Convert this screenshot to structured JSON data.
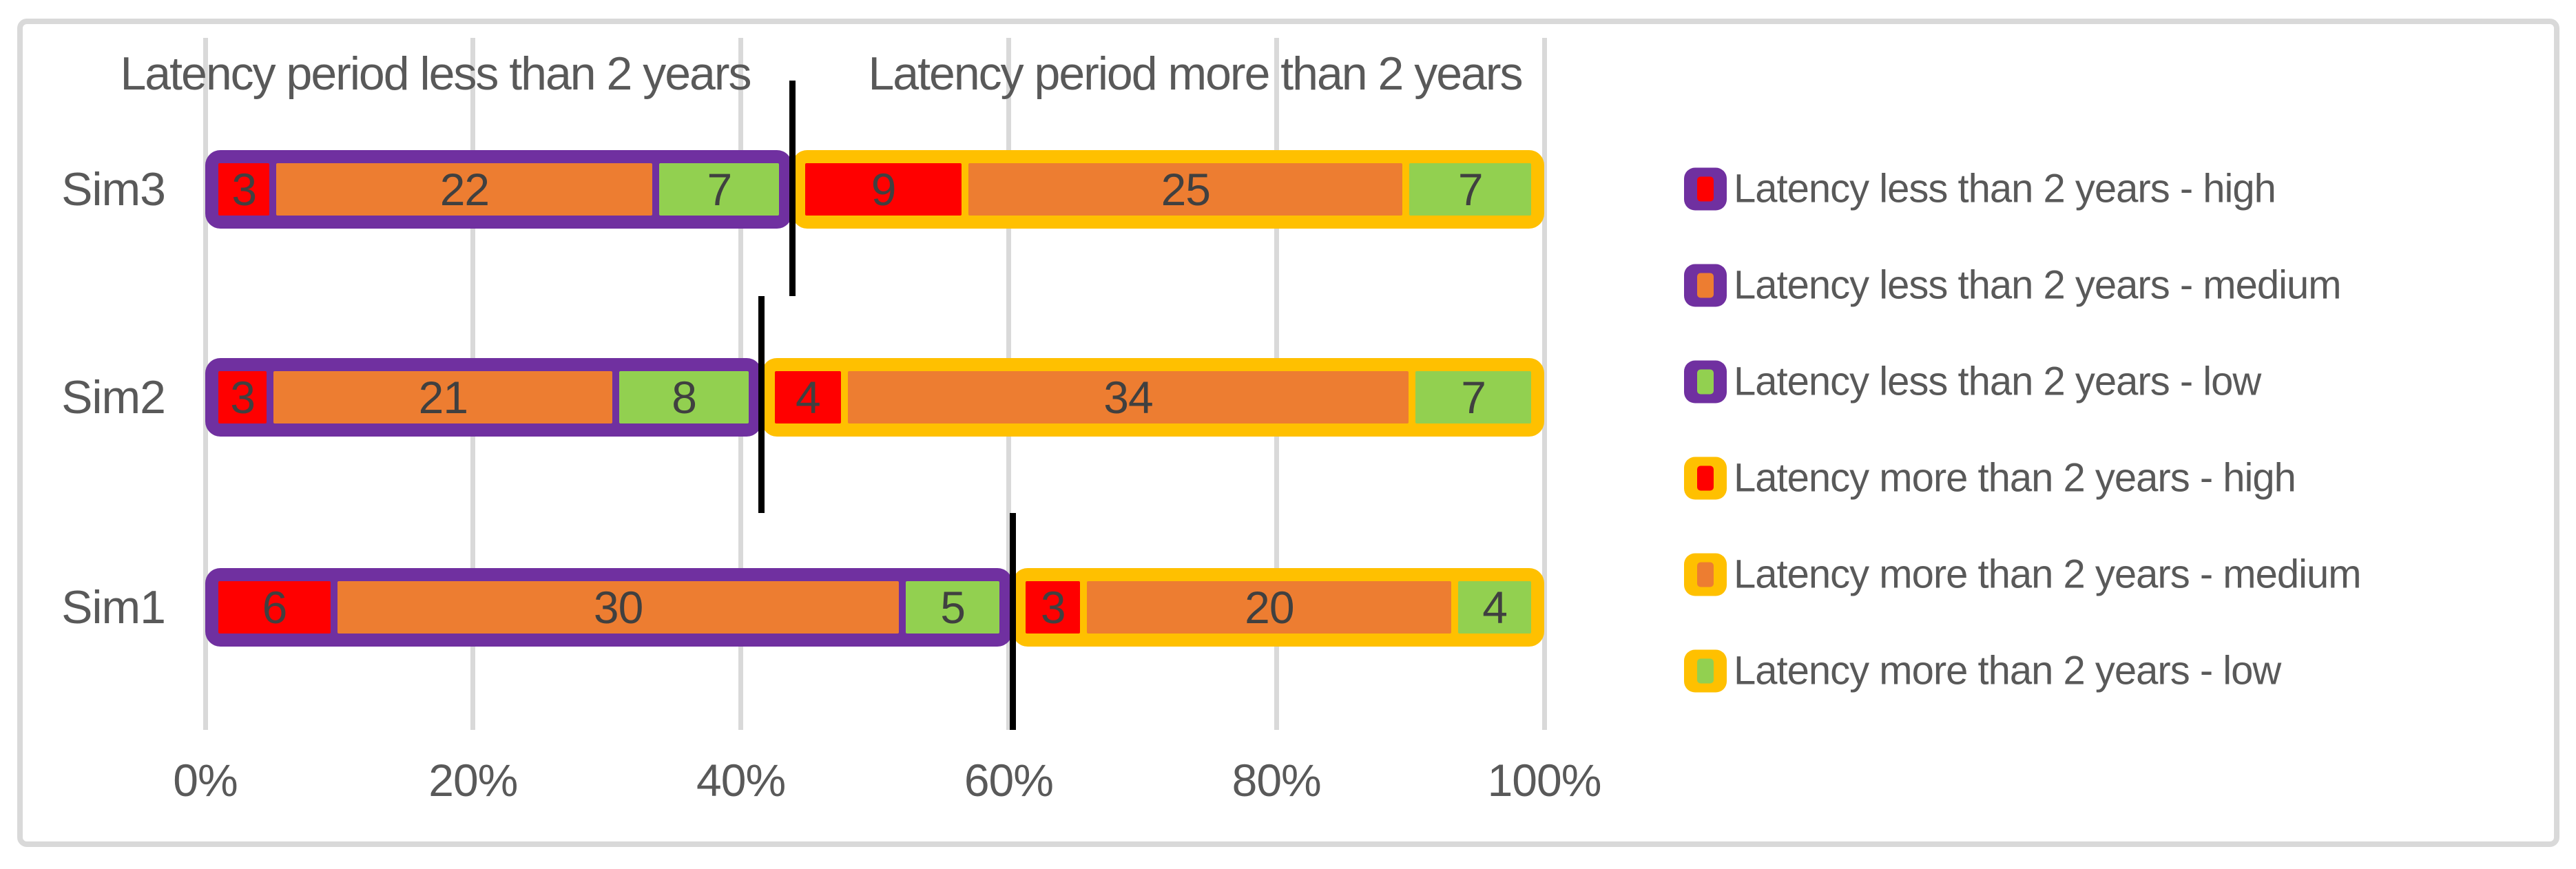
{
  "chart_data": {
    "type": "bar",
    "orientation": "horizontal",
    "stacked": "100%",
    "categories": [
      "Sim3",
      "Sim2",
      "Sim1"
    ],
    "groups": [
      {
        "name": "Latency period less than 2 years",
        "border_color": "#7030A0",
        "series": [
          {
            "name": "Latency less than 2 years - high",
            "color": "#FF0000",
            "values": [
              3,
              3,
              6
            ]
          },
          {
            "name": "Latency less than 2 years - medium",
            "color": "#ED7D31",
            "values": [
              22,
              21,
              30
            ]
          },
          {
            "name": "Latency less than 2 years - low",
            "color": "#92D050",
            "values": [
              7,
              8,
              5
            ]
          }
        ]
      },
      {
        "name": "Latency period more than 2 years",
        "border_color": "#FFC000",
        "series": [
          {
            "name": "Latency more than 2 years - high",
            "color": "#FF0000",
            "values": [
              9,
              4,
              3
            ]
          },
          {
            "name": "Latency more than 2 years - medium",
            "color": "#ED7D31",
            "values": [
              25,
              34,
              20
            ]
          },
          {
            "name": "Latency more than 2 years - low",
            "color": "#92D050",
            "values": [
              7,
              7,
              4
            ]
          }
        ]
      }
    ],
    "x_ticks": [
      "0%",
      "20%",
      "40%",
      "60%",
      "80%",
      "100%"
    ],
    "x_range_pct": [
      0,
      100
    ],
    "grid": true,
    "divider_between_groups": true,
    "legend_position": "right"
  },
  "colors": {
    "frame_gray": "#d9d9d9",
    "gridline_gray": "#d9d9d9",
    "text_gray": "#595959",
    "value_gray": "#404040",
    "divider_black": "#000000",
    "background": "#ffffff"
  }
}
